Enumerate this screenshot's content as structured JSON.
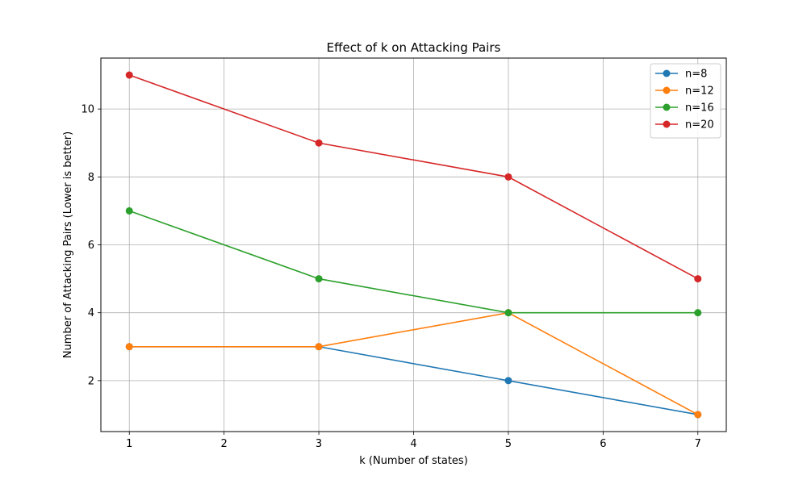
{
  "chart_data": {
    "type": "line",
    "title": "Effect of k on Attacking Pairs",
    "xlabel": "k (Number of states)",
    "ylabel": "Number of Attacking Pairs (Lower is better)",
    "x": [
      1,
      3,
      5,
      7
    ],
    "xlim": [
      0.7,
      7.3
    ],
    "ylim": [
      0.5,
      11.5
    ],
    "xticks": [
      1,
      2,
      3,
      4,
      5,
      6,
      7
    ],
    "yticks": [
      2,
      4,
      6,
      8,
      10
    ],
    "grid": true,
    "legend_position": "top-right",
    "series": [
      {
        "name": "n=8",
        "color": "#1f77b4",
        "values": [
          3,
          3,
          2,
          1
        ]
      },
      {
        "name": "n=12",
        "color": "#ff7f0e",
        "values": [
          3,
          3,
          4,
          1
        ]
      },
      {
        "name": "n=16",
        "color": "#2ca02c",
        "values": [
          7,
          5,
          4,
          4
        ]
      },
      {
        "name": "n=20",
        "color": "#d62728",
        "values": [
          11,
          9,
          8,
          5
        ]
      }
    ]
  }
}
